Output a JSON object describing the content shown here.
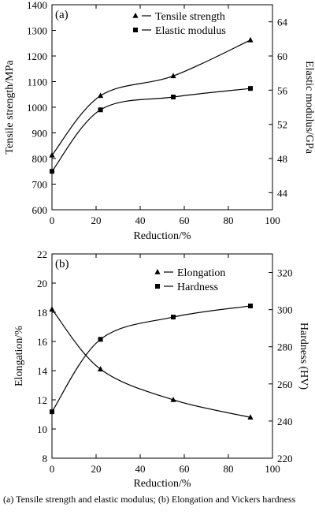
{
  "caption": "(a) Tensile strength and elastic modulus; (b) Elongation and Vickers hardness",
  "chart_data": [
    {
      "type": "line",
      "panel_label": "(a)",
      "xlabel": "Reduction/%",
      "ylabel": "Tensile strength/MPa",
      "y2label": "Elastic modulus/GPa",
      "xlim": [
        0,
        100
      ],
      "ylim": [
        600,
        1400
      ],
      "y2lim": [
        42,
        66
      ],
      "xticks": [
        0,
        20,
        40,
        60,
        80,
        100
      ],
      "yticks": [
        600,
        700,
        800,
        900,
        1000,
        1100,
        1200,
        1300,
        1400
      ],
      "y2ticks": [
        44,
        48,
        52,
        56,
        60,
        64
      ],
      "legend_position": "top-right",
      "grid": false,
      "series": [
        {
          "name": "Tensile strength",
          "marker": "triangle",
          "axis": "left",
          "x": [
            0,
            22,
            55,
            90
          ],
          "y": [
            813,
            1045,
            1122,
            1262
          ]
        },
        {
          "name": "Elastic modulus",
          "marker": "square",
          "axis": "right",
          "x": [
            0,
            22,
            55,
            90
          ],
          "y": [
            46.5,
            53.7,
            55.2,
            56.2
          ]
        }
      ]
    },
    {
      "type": "line",
      "panel_label": "(b)",
      "xlabel": "Reduction/%",
      "ylabel": "Elongation/%",
      "y2label": "Hardness (HV)",
      "xlim": [
        0,
        100
      ],
      "ylim": [
        8,
        22
      ],
      "y2lim": [
        220,
        330
      ],
      "xticks": [
        0,
        20,
        40,
        60,
        80,
        100
      ],
      "yticks": [
        8,
        10,
        12,
        14,
        16,
        18,
        20,
        22
      ],
      "y2ticks": [
        220,
        240,
        260,
        280,
        300,
        320
      ],
      "legend_position": "top-right",
      "grid": false,
      "series": [
        {
          "name": "Elongation",
          "marker": "triangle",
          "axis": "left",
          "x": [
            0,
            22,
            55,
            90
          ],
          "y": [
            18.2,
            14.1,
            12.0,
            10.8
          ]
        },
        {
          "name": "Hardness",
          "marker": "square",
          "axis": "right",
          "x": [
            0,
            22,
            55,
            90
          ],
          "y": [
            245,
            284,
            296,
            302
          ]
        }
      ]
    }
  ]
}
